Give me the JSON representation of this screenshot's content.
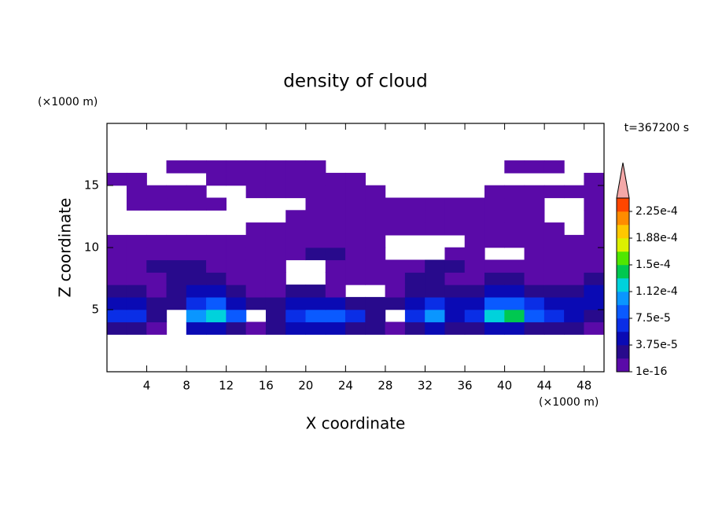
{
  "chart_data": {
    "type": "contour",
    "title": "density of cloud",
    "x_label": "X coordinate",
    "y_label": "Z coordinate",
    "x_unit": "(×1000 m)",
    "y_unit": "(×1000 m)",
    "annotation": "t=367200 s",
    "xlim": [
      0,
      50
    ],
    "ylim": [
      0,
      20
    ],
    "xticks": [
      4,
      8,
      12,
      16,
      20,
      24,
      28,
      32,
      36,
      40,
      44,
      48
    ],
    "yticks": [
      5,
      10,
      15
    ],
    "x": [
      1,
      3,
      5,
      7,
      9,
      11,
      13,
      15,
      17,
      19,
      21,
      23,
      25,
      27,
      29,
      31,
      33,
      35,
      37,
      39,
      41,
      43,
      45,
      47,
      49
    ],
    "y": [
      0.5,
      1.5,
      2.5,
      3.5,
      4.5,
      5.5,
      6.5,
      7.5,
      8.5,
      9.5,
      10.5,
      11.5,
      12.5,
      13.5,
      14.5,
      15.5,
      16.5,
      17.5,
      18.5,
      19.5
    ],
    "z": [
      [
        null,
        null,
        null,
        null,
        null,
        null,
        null,
        null,
        null,
        null,
        null,
        null,
        null,
        null,
        null,
        null,
        null,
        null,
        null,
        null,
        null,
        null,
        null,
        null,
        null
      ],
      [
        null,
        null,
        null,
        null,
        null,
        null,
        null,
        null,
        null,
        null,
        null,
        null,
        null,
        null,
        null,
        null,
        null,
        null,
        null,
        null,
        null,
        null,
        null,
        null,
        null
      ],
      [
        null,
        null,
        null,
        null,
        null,
        null,
        null,
        null,
        null,
        null,
        null,
        null,
        null,
        null,
        null,
        null,
        null,
        null,
        null,
        null,
        null,
        null,
        null,
        null,
        null
      ],
      [
        2.5e-05,
        2.5e-05,
        5e-06,
        null,
        4.5e-05,
        4.5e-05,
        2.5e-05,
        5e-06,
        2.5e-05,
        4.5e-05,
        4.5e-05,
        4.5e-05,
        2.5e-05,
        2.5e-05,
        5e-06,
        2.5e-05,
        4.5e-05,
        2.5e-05,
        2.5e-05,
        4.5e-05,
        4.5e-05,
        2.5e-05,
        2.5e-05,
        2.5e-05,
        5e-06
      ],
      [
        6.5e-05,
        6.5e-05,
        2.5e-05,
        null,
        0.0001,
        0.00012,
        8.5e-05,
        null,
        2.5e-05,
        6.5e-05,
        8.5e-05,
        8.5e-05,
        6.5e-05,
        2.5e-05,
        null,
        6.5e-05,
        0.0001,
        4.5e-05,
        6.5e-05,
        0.00012,
        0.00014,
        8.5e-05,
        6.5e-05,
        4.5e-05,
        2.5e-05
      ],
      [
        4.5e-05,
        4.5e-05,
        2.5e-05,
        2.5e-05,
        6.5e-05,
        8.5e-05,
        4.5e-05,
        2.5e-05,
        2.5e-05,
        4.5e-05,
        4.5e-05,
        4.5e-05,
        2.5e-05,
        2.5e-05,
        2.5e-05,
        4.5e-05,
        6.5e-05,
        4.5e-05,
        4.5e-05,
        8.5e-05,
        8.5e-05,
        6.5e-05,
        4.5e-05,
        4.5e-05,
        4.5e-05
      ],
      [
        2.5e-05,
        2.5e-05,
        5e-06,
        2.5e-05,
        4.5e-05,
        4.5e-05,
        2.5e-05,
        5e-06,
        5e-06,
        2.5e-05,
        2.5e-05,
        5e-06,
        null,
        null,
        5e-06,
        2.5e-05,
        2.5e-05,
        2.5e-05,
        2.5e-05,
        4.5e-05,
        4.5e-05,
        2.5e-05,
        2.5e-05,
        2.5e-05,
        4.5e-05
      ],
      [
        5e-06,
        5e-06,
        5e-06,
        2.5e-05,
        2.5e-05,
        2.5e-05,
        5e-06,
        5e-06,
        5e-06,
        null,
        null,
        5e-06,
        5e-06,
        5e-06,
        5e-06,
        2.5e-05,
        2.5e-05,
        5e-06,
        5e-06,
        2.5e-05,
        2.5e-05,
        5e-06,
        5e-06,
        5e-06,
        2.5e-05
      ],
      [
        5e-06,
        5e-06,
        2.5e-05,
        2.5e-05,
        2.5e-05,
        5e-06,
        5e-06,
        5e-06,
        5e-06,
        null,
        null,
        5e-06,
        5e-06,
        5e-06,
        5e-06,
        5e-06,
        2.5e-05,
        2.5e-05,
        5e-06,
        5e-06,
        5e-06,
        5e-06,
        5e-06,
        5e-06,
        5e-06
      ],
      [
        5e-06,
        5e-06,
        5e-06,
        5e-06,
        5e-06,
        5e-06,
        5e-06,
        5e-06,
        5e-06,
        5e-06,
        2.5e-05,
        2.5e-05,
        5e-06,
        5e-06,
        null,
        null,
        null,
        5e-06,
        5e-06,
        null,
        null,
        5e-06,
        5e-06,
        5e-06,
        5e-06
      ],
      [
        5e-06,
        5e-06,
        5e-06,
        5e-06,
        5e-06,
        5e-06,
        5e-06,
        5e-06,
        5e-06,
        5e-06,
        5e-06,
        5e-06,
        5e-06,
        5e-06,
        null,
        null,
        null,
        null,
        5e-06,
        5e-06,
        5e-06,
        5e-06,
        5e-06,
        5e-06,
        5e-06
      ],
      [
        null,
        null,
        null,
        null,
        null,
        null,
        null,
        5e-06,
        5e-06,
        5e-06,
        5e-06,
        5e-06,
        5e-06,
        5e-06,
        5e-06,
        5e-06,
        5e-06,
        5e-06,
        5e-06,
        5e-06,
        5e-06,
        5e-06,
        5e-06,
        null,
        5e-06
      ],
      [
        null,
        null,
        null,
        null,
        null,
        null,
        null,
        null,
        null,
        5e-06,
        5e-06,
        5e-06,
        5e-06,
        5e-06,
        5e-06,
        5e-06,
        5e-06,
        5e-06,
        5e-06,
        5e-06,
        5e-06,
        5e-06,
        null,
        null,
        5e-06
      ],
      [
        null,
        5e-06,
        5e-06,
        5e-06,
        5e-06,
        5e-06,
        null,
        null,
        null,
        null,
        5e-06,
        5e-06,
        5e-06,
        5e-06,
        5e-06,
        5e-06,
        5e-06,
        5e-06,
        5e-06,
        5e-06,
        5e-06,
        5e-06,
        null,
        null,
        5e-06
      ],
      [
        null,
        5e-06,
        5e-06,
        5e-06,
        5e-06,
        null,
        null,
        5e-06,
        5e-06,
        5e-06,
        5e-06,
        5e-06,
        5e-06,
        5e-06,
        null,
        null,
        null,
        null,
        null,
        5e-06,
        5e-06,
        5e-06,
        5e-06,
        5e-06,
        5e-06
      ],
      [
        5e-06,
        5e-06,
        null,
        null,
        null,
        5e-06,
        5e-06,
        5e-06,
        5e-06,
        5e-06,
        5e-06,
        5e-06,
        5e-06,
        null,
        null,
        null,
        null,
        null,
        null,
        null,
        null,
        null,
        null,
        null,
        5e-06
      ],
      [
        null,
        null,
        null,
        5e-06,
        5e-06,
        5e-06,
        5e-06,
        5e-06,
        5e-06,
        5e-06,
        5e-06,
        null,
        null,
        null,
        null,
        null,
        null,
        null,
        null,
        null,
        5e-06,
        5e-06,
        5e-06,
        null,
        null
      ],
      [
        null,
        null,
        null,
        null,
        null,
        null,
        null,
        null,
        null,
        null,
        null,
        null,
        null,
        null,
        null,
        null,
        null,
        null,
        null,
        null,
        null,
        null,
        null,
        null,
        null
      ],
      [
        null,
        null,
        null,
        null,
        null,
        null,
        null,
        null,
        null,
        null,
        null,
        null,
        null,
        null,
        null,
        null,
        null,
        null,
        null,
        null,
        null,
        null,
        null,
        null,
        null
      ],
      [
        null,
        null,
        null,
        null,
        null,
        null,
        null,
        null,
        null,
        null,
        null,
        null,
        null,
        null,
        null,
        null,
        null,
        null,
        null,
        null,
        null,
        null,
        null,
        null,
        null
      ]
    ],
    "levels": [
      1e-16,
      1.875e-05,
      3.75e-05,
      5.625e-05,
      7.5e-05,
      9.375e-05,
      0.0001125,
      0.00013125,
      0.00015,
      0.00016875,
      0.0001875,
      0.00020625,
      0.000225,
      0.00024375
    ],
    "colors": [
      "#5a0aa8",
      "#280a8c",
      "#0a0ab4",
      "#0a2ee6",
      "#0a5aff",
      "#0a96ff",
      "#00d2dc",
      "#00c850",
      "#50e600",
      "#dcf000",
      "#ffc800",
      "#ff8c00",
      "#ff4600"
    ],
    "extend_color": "#f4a8a8",
    "colorbar_ticks": [
      {
        "value": 1e-16,
        "label": "1e-16"
      },
      {
        "value": 3.75e-05,
        "label": "3.75e-5"
      },
      {
        "value": 7.5e-05,
        "label": "7.5e-5"
      },
      {
        "value": 0.0001125,
        "label": "1.12e-4"
      },
      {
        "value": 0.00015,
        "label": "1.5e-4"
      },
      {
        "value": 0.0001875,
        "label": "1.88e-4"
      },
      {
        "value": 0.000225,
        "label": "2.25e-4"
      }
    ]
  }
}
